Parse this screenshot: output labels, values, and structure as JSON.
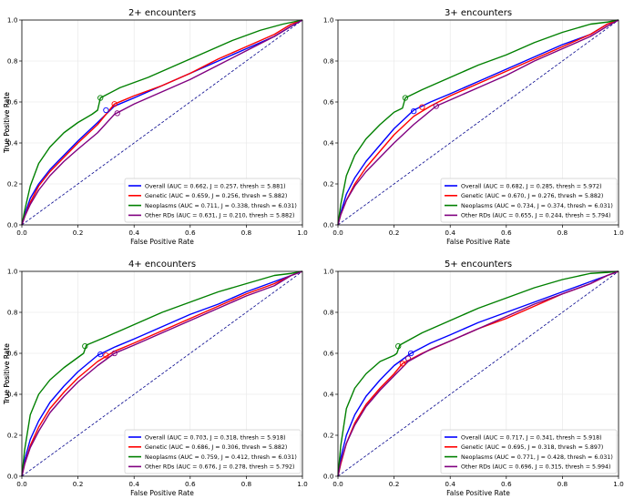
{
  "figure": {
    "colors": {
      "Overall": "#0000ff",
      "Genetic": "#ff0000",
      "Neoplasms": "#008000",
      "Other RDs": "#800080",
      "diagonal": "#00008b"
    }
  },
  "chart_data": [
    {
      "type": "line",
      "title": "2+ encounters",
      "xlabel": "False Positive Rate",
      "ylabel": "True Positive Rate",
      "xlim": [
        0,
        1
      ],
      "ylim": [
        0,
        1
      ],
      "ticks": [
        "0.0",
        "0.2",
        "0.4",
        "0.6",
        "0.8",
        "1.0"
      ],
      "grid": true,
      "legend_position": "lower-right",
      "series": [
        {
          "name": "Overall",
          "legend": "Overall (AUC = 0.662, J = 0.257, thresh = 5.881)",
          "color": "#0000ff",
          "x": [
            0,
            0.01,
            0.03,
            0.06,
            0.1,
            0.15,
            0.2,
            0.27,
            0.33,
            0.4,
            0.5,
            0.6,
            0.7,
            0.8,
            0.9,
            0.96,
            1
          ],
          "y": [
            0,
            0.05,
            0.13,
            0.2,
            0.27,
            0.34,
            0.41,
            0.5,
            0.58,
            0.62,
            0.68,
            0.74,
            0.8,
            0.86,
            0.92,
            0.97,
            1
          ],
          "marker": [
            0.3,
            0.56
          ]
        },
        {
          "name": "Genetic",
          "legend": "Genetic (AUC = 0.659, J = 0.256, thresh = 5.882)",
          "color": "#ff0000",
          "x": [
            0,
            0.01,
            0.03,
            0.06,
            0.1,
            0.15,
            0.2,
            0.27,
            0.33,
            0.4,
            0.5,
            0.6,
            0.7,
            0.8,
            0.9,
            0.96,
            1
          ],
          "y": [
            0,
            0.04,
            0.11,
            0.19,
            0.26,
            0.33,
            0.4,
            0.49,
            0.59,
            0.63,
            0.68,
            0.74,
            0.81,
            0.87,
            0.93,
            0.98,
            1
          ],
          "marker": [
            0.33,
            0.59
          ]
        },
        {
          "name": "Neoplasms",
          "legend": "Neoplasms (AUC = 0.711, J = 0.338, thresh = 6.031)",
          "color": "#008000",
          "x": [
            0,
            0.01,
            0.03,
            0.06,
            0.1,
            0.15,
            0.2,
            0.25,
            0.27,
            0.28,
            0.35,
            0.45,
            0.55,
            0.65,
            0.75,
            0.85,
            0.93,
            1
          ],
          "y": [
            0,
            0.07,
            0.19,
            0.3,
            0.38,
            0.45,
            0.5,
            0.54,
            0.56,
            0.62,
            0.67,
            0.72,
            0.78,
            0.84,
            0.9,
            0.95,
            0.98,
            1
          ],
          "marker": [
            0.28,
            0.62
          ]
        },
        {
          "name": "Other RDs",
          "legend": "Other RDs (AUC = 0.631, J = 0.210, thresh = 5.882)",
          "color": "#800080",
          "x": [
            0,
            0.01,
            0.03,
            0.06,
            0.1,
            0.15,
            0.2,
            0.27,
            0.33,
            0.4,
            0.5,
            0.6,
            0.7,
            0.8,
            0.9,
            0.96,
            1
          ],
          "y": [
            0,
            0.04,
            0.1,
            0.17,
            0.24,
            0.31,
            0.37,
            0.45,
            0.54,
            0.59,
            0.65,
            0.71,
            0.78,
            0.85,
            0.92,
            0.97,
            1
          ],
          "marker": [
            0.34,
            0.545
          ]
        }
      ]
    },
    {
      "type": "line",
      "title": "3+ encounters",
      "xlabel": "False Positive Rate",
      "ylabel": "True Positive Rate",
      "xlim": [
        0,
        1
      ],
      "ylim": [
        0,
        1
      ],
      "ticks": [
        "0.0",
        "0.2",
        "0.4",
        "0.6",
        "0.8",
        "1.0"
      ],
      "grid": true,
      "legend_position": "lower-right",
      "series": [
        {
          "name": "Overall",
          "legend": "Overall (AUC = 0.682, J = 0.285, thresh = 5.972)",
          "color": "#0000ff",
          "x": [
            0,
            0.01,
            0.03,
            0.06,
            0.1,
            0.15,
            0.2,
            0.27,
            0.33,
            0.4,
            0.5,
            0.6,
            0.7,
            0.8,
            0.9,
            0.96,
            1
          ],
          "y": [
            0,
            0.06,
            0.15,
            0.23,
            0.31,
            0.39,
            0.47,
            0.56,
            0.6,
            0.64,
            0.7,
            0.76,
            0.82,
            0.88,
            0.93,
            0.98,
            1
          ],
          "marker": [
            0.27,
            0.555
          ]
        },
        {
          "name": "Genetic",
          "legend": "Genetic (AUC = 0.670, J = 0.276, thresh = 5.882)",
          "color": "#ff0000",
          "x": [
            0,
            0.01,
            0.03,
            0.06,
            0.1,
            0.15,
            0.2,
            0.27,
            0.33,
            0.4,
            0.5,
            0.6,
            0.7,
            0.8,
            0.9,
            0.96,
            1
          ],
          "y": [
            0,
            0.05,
            0.12,
            0.2,
            0.28,
            0.36,
            0.44,
            0.53,
            0.58,
            0.63,
            0.69,
            0.75,
            0.81,
            0.87,
            0.93,
            0.98,
            1
          ],
          "marker": [
            0.3,
            0.575
          ]
        },
        {
          "name": "Neoplasms",
          "legend": "Neoplasms (AUC = 0.734, J = 0.374, thresh = 6.031)",
          "color": "#008000",
          "x": [
            0,
            0.01,
            0.03,
            0.06,
            0.1,
            0.15,
            0.2,
            0.23,
            0.24,
            0.3,
            0.4,
            0.5,
            0.6,
            0.7,
            0.8,
            0.9,
            0.96,
            1
          ],
          "y": [
            0,
            0.1,
            0.24,
            0.34,
            0.42,
            0.49,
            0.55,
            0.57,
            0.62,
            0.66,
            0.72,
            0.78,
            0.83,
            0.89,
            0.94,
            0.98,
            0.99,
            1
          ],
          "marker": [
            0.24,
            0.62
          ]
        },
        {
          "name": "Other RDs",
          "legend": "Other RDs (AUC = 0.655, J = 0.244, thresh = 5.794)",
          "color": "#800080",
          "x": [
            0,
            0.01,
            0.03,
            0.06,
            0.1,
            0.15,
            0.2,
            0.27,
            0.35,
            0.4,
            0.5,
            0.6,
            0.7,
            0.8,
            0.9,
            0.96,
            1
          ],
          "y": [
            0,
            0.05,
            0.12,
            0.19,
            0.26,
            0.33,
            0.4,
            0.49,
            0.58,
            0.61,
            0.67,
            0.73,
            0.8,
            0.86,
            0.92,
            0.97,
            1
          ],
          "marker": [
            0.35,
            0.58
          ]
        }
      ]
    },
    {
      "type": "line",
      "title": "4+ encounters",
      "xlabel": "False Positive Rate",
      "ylabel": "True Positive Rate",
      "xlim": [
        0,
        1
      ],
      "ylim": [
        0,
        1
      ],
      "ticks": [
        "0.0",
        "0.2",
        "0.4",
        "0.6",
        "0.8",
        "1.0"
      ],
      "grid": true,
      "legend_position": "lower-right",
      "series": [
        {
          "name": "Overall",
          "legend": "Overall (AUC = 0.703, J = 0.318, thresh = 5.918)",
          "color": "#0000ff",
          "x": [
            0,
            0.01,
            0.03,
            0.06,
            0.1,
            0.15,
            0.2,
            0.27,
            0.33,
            0.4,
            0.5,
            0.6,
            0.7,
            0.8,
            0.9,
            0.96,
            1
          ],
          "y": [
            0,
            0.08,
            0.18,
            0.27,
            0.36,
            0.44,
            0.51,
            0.59,
            0.63,
            0.67,
            0.73,
            0.79,
            0.84,
            0.9,
            0.95,
            0.98,
            1
          ],
          "marker": [
            0.28,
            0.595
          ]
        },
        {
          "name": "Genetic",
          "legend": "Genetic (AUC = 0.686, J = 0.306, thresh = 5.882)",
          "color": "#ff0000",
          "x": [
            0,
            0.01,
            0.03,
            0.06,
            0.1,
            0.15,
            0.2,
            0.27,
            0.33,
            0.4,
            0.5,
            0.6,
            0.7,
            0.8,
            0.9,
            0.96,
            1
          ],
          "y": [
            0,
            0.06,
            0.15,
            0.24,
            0.33,
            0.41,
            0.48,
            0.56,
            0.61,
            0.65,
            0.71,
            0.77,
            0.83,
            0.89,
            0.94,
            0.98,
            1
          ],
          "marker": [
            0.3,
            0.59
          ]
        },
        {
          "name": "Neoplasms",
          "legend": "Neoplasms (AUC = 0.759, J = 0.412, thresh = 6.031)",
          "color": "#008000",
          "x": [
            0,
            0.01,
            0.03,
            0.06,
            0.1,
            0.15,
            0.2,
            0.22,
            0.23,
            0.3,
            0.4,
            0.5,
            0.6,
            0.7,
            0.8,
            0.9,
            0.96,
            1
          ],
          "y": [
            0,
            0.13,
            0.3,
            0.4,
            0.47,
            0.53,
            0.58,
            0.6,
            0.64,
            0.68,
            0.74,
            0.8,
            0.85,
            0.9,
            0.94,
            0.98,
            0.99,
            1
          ],
          "marker": [
            0.225,
            0.635
          ]
        },
        {
          "name": "Other RDs",
          "legend": "Other RDs (AUC = 0.676, J = 0.278, thresh = 5.792)",
          "color": "#800080",
          "x": [
            0,
            0.01,
            0.03,
            0.06,
            0.1,
            0.15,
            0.2,
            0.27,
            0.33,
            0.4,
            0.5,
            0.6,
            0.7,
            0.8,
            0.9,
            0.96,
            1
          ],
          "y": [
            0,
            0.06,
            0.14,
            0.22,
            0.31,
            0.39,
            0.46,
            0.54,
            0.6,
            0.64,
            0.7,
            0.76,
            0.82,
            0.88,
            0.93,
            0.98,
            1
          ],
          "marker": [
            0.33,
            0.6
          ]
        }
      ]
    },
    {
      "type": "line",
      "title": "5+ encounters",
      "xlabel": "False Positive Rate",
      "ylabel": "True Positive Rate",
      "xlim": [
        0,
        1
      ],
      "ylim": [
        0,
        1
      ],
      "ticks": [
        "0.0",
        "0.2",
        "0.4",
        "0.6",
        "0.8",
        "1.0"
      ],
      "grid": true,
      "legend_position": "lower-right",
      "series": [
        {
          "name": "Overall",
          "legend": "Overall (AUC = 0.717, J = 0.341, thresh = 5.918)",
          "color": "#0000ff",
          "x": [
            0,
            0.01,
            0.03,
            0.06,
            0.1,
            0.15,
            0.2,
            0.26,
            0.33,
            0.4,
            0.5,
            0.6,
            0.7,
            0.8,
            0.9,
            0.96,
            1
          ],
          "y": [
            0,
            0.09,
            0.2,
            0.3,
            0.39,
            0.47,
            0.54,
            0.6,
            0.65,
            0.69,
            0.75,
            0.8,
            0.85,
            0.9,
            0.95,
            0.98,
            1
          ],
          "marker": [
            0.26,
            0.6
          ]
        },
        {
          "name": "Genetic",
          "legend": "Genetic (AUC = 0.695, J = 0.318, thresh = 5.897)",
          "color": "#ff0000",
          "x": [
            0,
            0.01,
            0.03,
            0.06,
            0.1,
            0.15,
            0.2,
            0.23,
            0.3,
            0.4,
            0.5,
            0.6,
            0.7,
            0.8,
            0.9,
            0.96,
            1
          ],
          "y": [
            0,
            0.06,
            0.16,
            0.26,
            0.35,
            0.43,
            0.5,
            0.55,
            0.6,
            0.66,
            0.72,
            0.77,
            0.83,
            0.89,
            0.94,
            0.98,
            1
          ],
          "marker": [
            0.23,
            0.55
          ]
        },
        {
          "name": "Neoplasms",
          "legend": "Neoplasms (AUC = 0.771, J = 0.428, thresh = 6.031)",
          "color": "#008000",
          "x": [
            0,
            0.01,
            0.03,
            0.06,
            0.1,
            0.15,
            0.2,
            0.21,
            0.22,
            0.3,
            0.4,
            0.5,
            0.6,
            0.7,
            0.8,
            0.9,
            0.96,
            1
          ],
          "y": [
            0,
            0.15,
            0.33,
            0.43,
            0.5,
            0.56,
            0.59,
            0.6,
            0.64,
            0.7,
            0.76,
            0.82,
            0.87,
            0.92,
            0.96,
            0.99,
            0.995,
            1
          ],
          "marker": [
            0.215,
            0.635
          ]
        },
        {
          "name": "Other RDs",
          "legend": "Other RDs (AUC = 0.696, J = 0.315, thresh = 5.994)",
          "color": "#800080",
          "x": [
            0,
            0.01,
            0.03,
            0.06,
            0.1,
            0.15,
            0.2,
            0.25,
            0.33,
            0.4,
            0.5,
            0.6,
            0.7,
            0.8,
            0.9,
            0.96,
            1
          ],
          "y": [
            0,
            0.07,
            0.16,
            0.25,
            0.34,
            0.42,
            0.49,
            0.56,
            0.62,
            0.66,
            0.72,
            0.78,
            0.84,
            0.89,
            0.94,
            0.98,
            1
          ],
          "marker": [
            0.25,
            0.575
          ]
        }
      ]
    }
  ]
}
